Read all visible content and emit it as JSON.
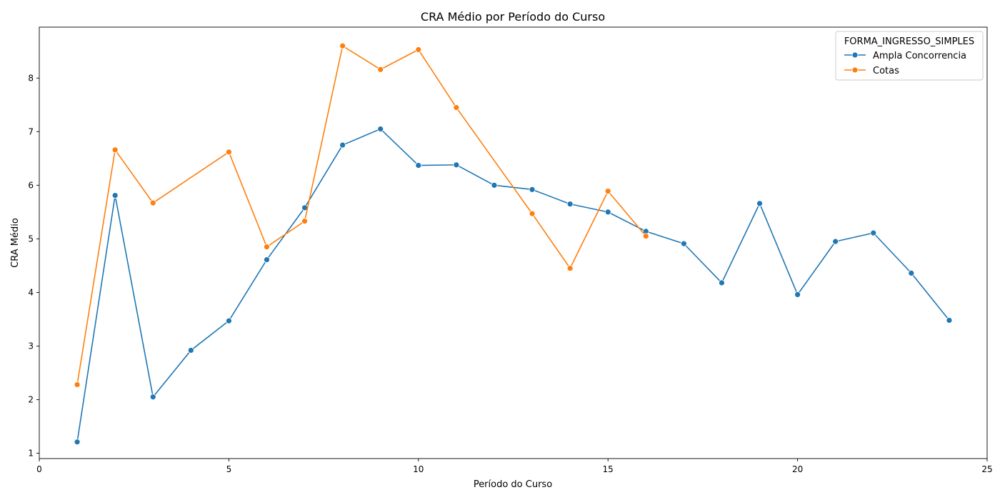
{
  "chart_data": {
    "type": "line",
    "title": "CRA Médio por Período do Curso",
    "xlabel": "Período do Curso",
    "ylabel": "CRA Médio",
    "xlim": [
      0,
      25
    ],
    "ylim": [
      0.9,
      8.95
    ],
    "xticks": [
      0,
      5,
      10,
      15,
      20,
      25
    ],
    "yticks": [
      1,
      2,
      3,
      4,
      5,
      6,
      7,
      8
    ],
    "grid": false,
    "legend": {
      "title": "FORMA_INGRESSO_SIMPLES",
      "placement": "top-right"
    },
    "series": [
      {
        "name": "Ampla Concorrencia",
        "color": "#1f77b4",
        "x": [
          1,
          2,
          3,
          4,
          5,
          6,
          7,
          8,
          9,
          10,
          11,
          12,
          13,
          14,
          15,
          16,
          17,
          18,
          19,
          20,
          21,
          22,
          23,
          24
        ],
        "y": [
          1.21,
          5.81,
          2.05,
          2.92,
          3.47,
          4.61,
          5.58,
          6.75,
          7.05,
          6.37,
          6.38,
          6.0,
          5.92,
          5.65,
          5.5,
          5.14,
          4.91,
          4.18,
          5.66,
          3.96,
          4.95,
          5.11,
          4.36,
          3.48
        ]
      },
      {
        "name": "Cotas",
        "color": "#ff7f0e",
        "x": [
          1,
          2,
          3,
          5,
          6,
          7,
          8,
          9,
          10,
          11,
          13,
          14,
          15,
          16
        ],
        "y": [
          2.28,
          6.66,
          5.67,
          6.62,
          4.85,
          5.33,
          8.6,
          8.16,
          8.53,
          7.45,
          5.47,
          4.45,
          5.89,
          5.05
        ]
      }
    ]
  }
}
